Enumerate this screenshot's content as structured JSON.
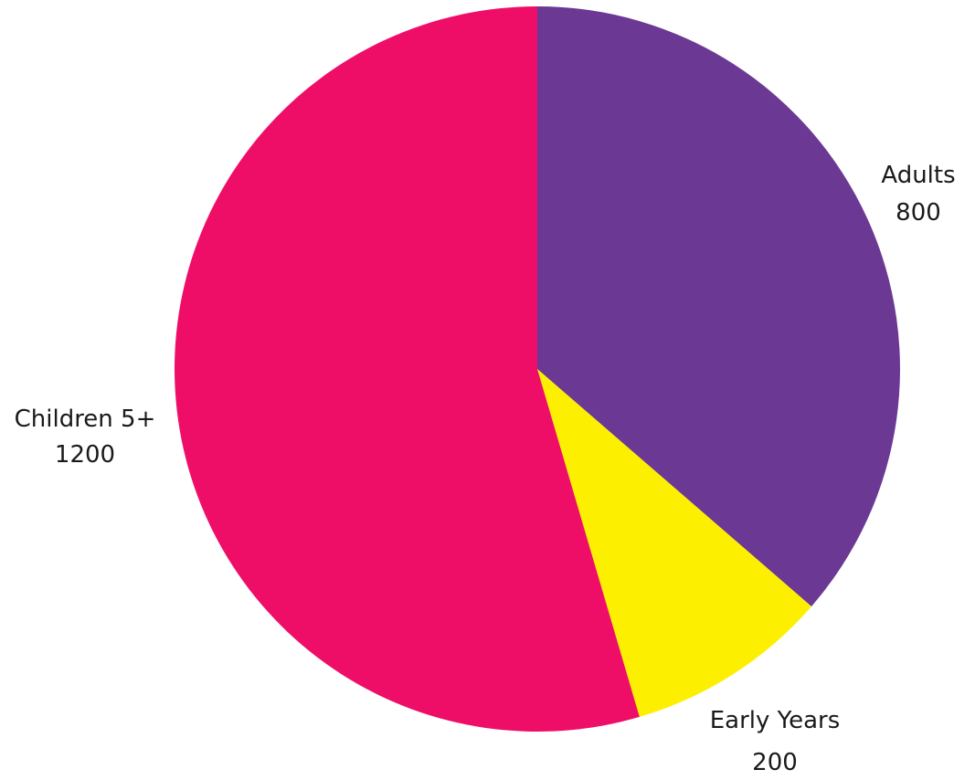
{
  "chart_data": {
    "type": "pie",
    "title": "",
    "slices": [
      {
        "label": "Adults",
        "value": 800,
        "value_label": "800",
        "color": "#6b3893"
      },
      {
        "label": "Early Years",
        "value": 200,
        "value_label": "200",
        "color": "#fdef00"
      },
      {
        "label": "Children 5+",
        "value": 1200,
        "value_label": "1200",
        "color": "#ee0e67"
      }
    ],
    "start_angle": "12 o'clock",
    "direction": "clockwise",
    "legend": "none (labels beside slices)"
  }
}
